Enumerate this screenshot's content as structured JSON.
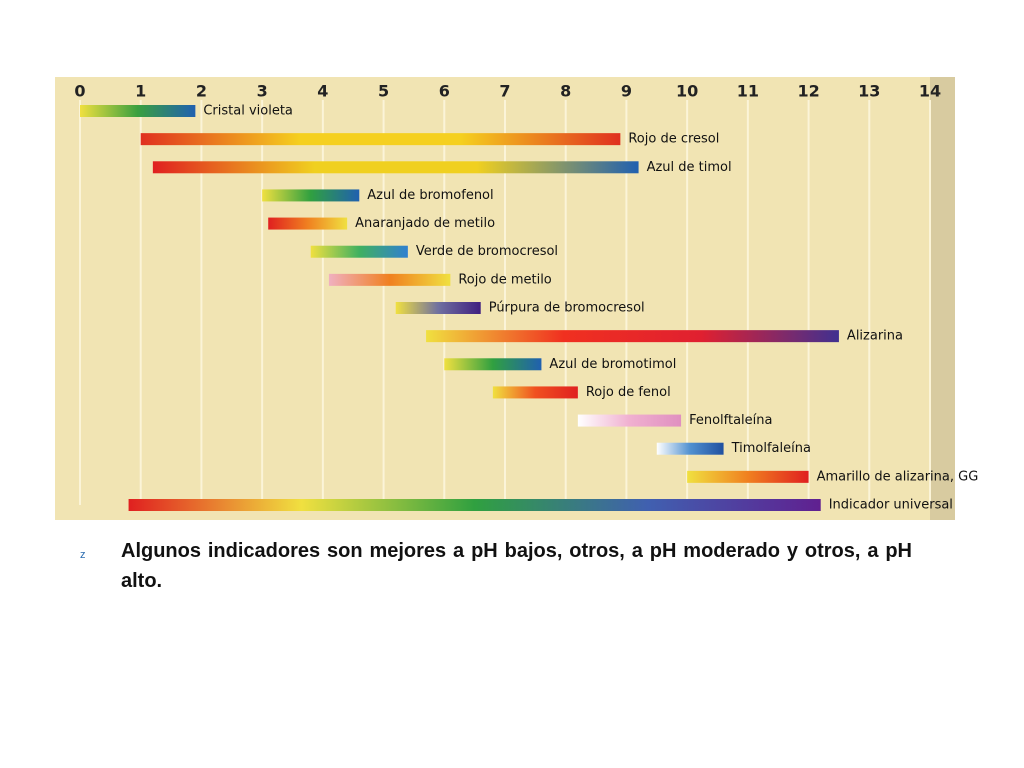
{
  "chart_data": {
    "type": "range",
    "categories": [
      "Cristal violeta",
      "Rojo de cresol",
      "Azul de timol",
      "Azul de bromofenol",
      "Anaranjado de metilo",
      "Verde de bromocresol",
      "Rojo de metilo",
      "Púrpura de bromocresol",
      "Alizarina",
      "Azul de bromotimol",
      "Rojo de fenol",
      "Fenolftaleína",
      "Timolfaleína",
      "Amarillo de alizarina, GG",
      "Indicador universal"
    ],
    "values": [
      [
        0,
        1.9
      ],
      [
        1.0,
        8.9
      ],
      [
        1.2,
        9.2
      ],
      [
        3.0,
        4.6
      ],
      [
        3.1,
        4.4
      ],
      [
        3.8,
        5.4
      ],
      [
        4.1,
        6.1
      ],
      [
        5.2,
        6.6
      ],
      [
        5.7,
        12.5
      ],
      [
        6.0,
        7.6
      ],
      [
        6.8,
        8.2
      ],
      [
        8.2,
        9.9
      ],
      [
        9.5,
        10.6
      ],
      [
        10.0,
        12.0
      ],
      [
        0.8,
        12.2
      ]
    ],
    "colors": [
      [
        "#f0e040",
        "#3aa040",
        "#2060b0"
      ],
      [
        "#e03020",
        "#f5d020",
        "#f5d020",
        "#e03020"
      ],
      [
        "#e02020",
        "#f0d020",
        "#f0d020",
        "#2060b0"
      ],
      [
        "#f0e040",
        "#30a040",
        "#2060b0"
      ],
      [
        "#e02020",
        "#f08020",
        "#f0e040"
      ],
      [
        "#f0e040",
        "#40b060",
        "#3080d0"
      ],
      [
        "#f0b0c0",
        "#f08020",
        "#f0e040"
      ],
      [
        "#f0e040",
        "#7070a0",
        "#402080"
      ],
      [
        "#f0e040",
        "#f03020",
        "#e02030",
        "#403090"
      ],
      [
        "#f0e040",
        "#30a040",
        "#2060b0"
      ],
      [
        "#f0e040",
        "#f05020",
        "#e02020"
      ],
      [
        "#ffffff",
        "#f0b0d0",
        "#e090c0"
      ],
      [
        "#ffffff",
        "#5090d0",
        "#2050a0"
      ],
      [
        "#f0e040",
        "#f08020",
        "#e02020"
      ],
      [
        "#e02020",
        "#f0e040",
        "#30a040",
        "#4060b0",
        "#602090"
      ]
    ],
    "xlim": [
      0,
      14
    ],
    "xticks": [
      0,
      1,
      2,
      3,
      4,
      5,
      6,
      7,
      8,
      9,
      10,
      11,
      12,
      13,
      14
    ],
    "grid": true
  },
  "caption": {
    "bullet": "z",
    "text": "Algunos indicadores son mejores a pH bajos, otros, a pH moderado y otros, a pH alto."
  }
}
